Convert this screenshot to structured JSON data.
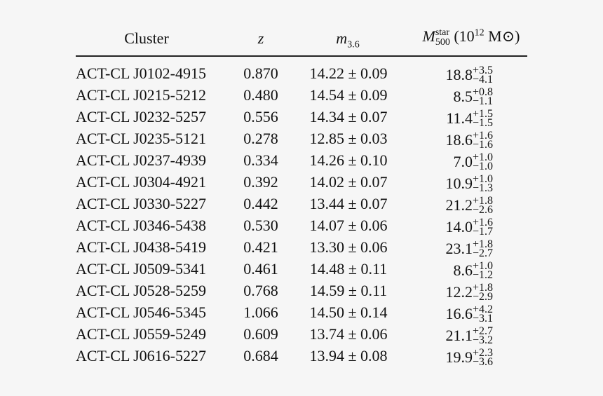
{
  "table": {
    "header": {
      "cluster": "Cluster",
      "z": "z",
      "m": {
        "base": "m",
        "sub": "3.6"
      },
      "mass": {
        "base": "M",
        "sup": "star",
        "sub": "500",
        "unit_open": "(10",
        "unit_sup": "12",
        "unit_close": "M⊙)"
      }
    },
    "rows": [
      [
        "ACT-CL J0102-4915",
        "0.870",
        "14.22 ± 0.09",
        "18.8",
        "+3.5",
        "−4.1"
      ],
      [
        "ACT-CL J0215-5212",
        "0.480",
        "14.54 ± 0.09",
        "8.5",
        "+0.8",
        "−1.1"
      ],
      [
        "ACT-CL J0232-5257",
        "0.556",
        "14.34 ± 0.07",
        "11.4",
        "+1.5",
        "−1.5"
      ],
      [
        "ACT-CL J0235-5121",
        "0.278",
        "12.85 ± 0.03",
        "18.6",
        "+1.6",
        "−1.6"
      ],
      [
        "ACT-CL J0237-4939",
        "0.334",
        "14.26 ± 0.10",
        "7.0",
        "+1.0",
        "−1.0"
      ],
      [
        "ACT-CL J0304-4921",
        "0.392",
        "14.02 ± 0.07",
        "10.9",
        "+1.0",
        "−1.3"
      ],
      [
        "ACT-CL J0330-5227",
        "0.442",
        "13.44 ± 0.07",
        "21.2",
        "+1.8",
        "−2.6"
      ],
      [
        "ACT-CL J0346-5438",
        "0.530",
        "14.07 ± 0.06",
        "14.0",
        "+1.6",
        "−1.7"
      ],
      [
        "ACT-CL J0438-5419",
        "0.421",
        "13.30 ± 0.06",
        "23.1",
        "+1.8",
        "−2.7"
      ],
      [
        "ACT-CL J0509-5341",
        "0.461",
        "14.48 ± 0.11",
        "8.6",
        "+1.0",
        "−1.2"
      ],
      [
        "ACT-CL J0528-5259",
        "0.768",
        "14.59 ± 0.11",
        "12.2",
        "+1.8",
        "−2.9"
      ],
      [
        "ACT-CL J0546-5345",
        "1.066",
        "14.50 ± 0.14",
        "16.6",
        "+4.2",
        "−3.1"
      ],
      [
        "ACT-CL J0559-5249",
        "0.609",
        "13.74 ± 0.06",
        "21.1",
        "+2.7",
        "−3.2"
      ],
      [
        "ACT-CL J0616-5227",
        "0.684",
        "13.94 ± 0.08",
        "19.9",
        "+2.3",
        "−3.6"
      ]
    ]
  }
}
